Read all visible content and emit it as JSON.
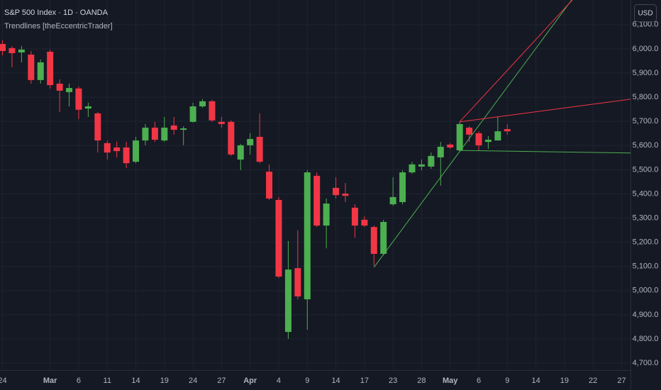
{
  "chart_data": {
    "type": "candlestick",
    "title": "S&P 500 Index · 1D · OANDA",
    "subtitle": "Trendlines [theEccentricTrader]",
    "categories": [
      "24",
      null,
      null,
      null,
      null,
      "Mar",
      null,
      null,
      "6",
      null,
      null,
      "11",
      null,
      null,
      "14",
      null,
      null,
      "19",
      null,
      null,
      "24",
      null,
      null,
      "27",
      null,
      null,
      "Apr",
      null,
      null,
      "4",
      null,
      null,
      "9",
      null,
      null,
      "14",
      null,
      null,
      "17",
      null,
      null,
      "23",
      null,
      null,
      "28",
      null,
      null,
      "May",
      null,
      null,
      "6",
      null,
      null,
      "9",
      null,
      null,
      "14",
      null,
      null,
      "19",
      null,
      null,
      "22",
      null,
      null,
      "27",
      null
    ],
    "open": [
      6020,
      6003,
      5985,
      5976,
      5871,
      5988,
      5856,
      5821,
      5836,
      5753,
      5733,
      5610,
      5592,
      5592,
      5533,
      5621,
      5674,
      5621,
      5683,
      5665,
      5698,
      5762,
      5783,
      5698,
      5698,
      5542,
      5601,
      5636,
      5492,
      5375,
      4829,
      5093,
      4964,
      5475,
      5269,
      5425,
      5401,
      5343,
      5293,
      5263,
      5152,
      5357,
      5366,
      5489,
      5513,
      5513,
      5551,
      5604,
      5580,
      5674,
      5651,
      5615,
      5621,
      5668,
      null,
      null,
      null,
      null,
      null,
      null,
      null,
      null,
      null,
      null,
      null,
      null,
      null
    ],
    "high": [
      6035,
      6011,
      6012,
      5991,
      5956,
      5997,
      5874,
      5856,
      5844,
      5777,
      5739,
      5621,
      5616,
      5616,
      5636,
      5689,
      5698,
      5718,
      5718,
      5680,
      5777,
      5792,
      5789,
      5718,
      5704,
      5607,
      5651,
      5733,
      5522,
      5387,
      5205,
      5249,
      5498,
      5489,
      5381,
      5469,
      5445,
      5357,
      5307,
      5269,
      5293,
      5469,
      5498,
      5533,
      5542,
      5571,
      5615,
      5610,
      5698,
      5680,
      5659,
      5639,
      5718,
      5689,
      null,
      null,
      null,
      null,
      null,
      null,
      null,
      null,
      null,
      null,
      null,
      null,
      null
    ],
    "low": [
      5973,
      5924,
      5944,
      5856,
      5856,
      5836,
      5739,
      5762,
      5709,
      5718,
      5571,
      5542,
      5551,
      5507,
      5527,
      5601,
      5615,
      5615,
      5645,
      5601,
      5695,
      5756,
      5698,
      5674,
      5557,
      5498,
      5563,
      5527,
      5375,
      5052,
      4800,
      4964,
      4838,
      5263,
      5175,
      5381,
      5366,
      5219,
      5263,
      5102,
      5146,
      5351,
      5357,
      5483,
      5498,
      5504,
      5434,
      5586,
      5574,
      5615,
      5580,
      5586,
      5621,
      5645,
      null,
      null,
      null,
      null,
      null,
      null,
      null,
      null,
      null,
      null,
      null,
      null,
      null
    ],
    "close": [
      5991,
      5982,
      5997,
      5871,
      5944,
      5850,
      5827,
      5838,
      5748,
      5762,
      5621,
      5571,
      5577,
      5527,
      5621,
      5674,
      5624,
      5674,
      5665,
      5671,
      5762,
      5783,
      5704,
      5689,
      5563,
      5601,
      5627,
      5533,
      5381,
      5058,
      5087,
      4976,
      5489,
      5269,
      5360,
      5395,
      5392,
      5269,
      5269,
      5152,
      5284,
      5387,
      5489,
      5522,
      5522,
      5557,
      5595,
      5592,
      5689,
      5645,
      5601,
      5624,
      5659,
      5659,
      null,
      null,
      null,
      null,
      null,
      null,
      null,
      null,
      null,
      null,
      null,
      null,
      null
    ],
    "up_color": "#4caf50",
    "down_color": "#f23645",
    "trendlines": [
      {
        "color": "#4caf50",
        "x": [
          39,
          66
        ],
        "values": [
          5096,
          6535
        ]
      },
      {
        "color": "#f23645",
        "x": [
          48,
          66
        ],
        "values": [
          5698,
          6465
        ]
      },
      {
        "color": "#f23645",
        "x": [
          48,
          66
        ],
        "values": [
          5698,
          5792
        ]
      },
      {
        "color": "#4caf50",
        "x": [
          48,
          66
        ],
        "values": [
          5580,
          5569
        ]
      }
    ],
    "ylim": [
      4671,
      6202
    ],
    "yticks": [
      {
        "value": 4700,
        "label": "4,700.0"
      },
      {
        "value": 4800,
        "label": "4,800.0"
      },
      {
        "value": 4900,
        "label": "4,900.0"
      },
      {
        "value": 5000,
        "label": "5,000.0"
      },
      {
        "value": 5100,
        "label": "5,100.0"
      },
      {
        "value": 5200,
        "label": "5,200.0"
      },
      {
        "value": 5300,
        "label": "5,300.0"
      },
      {
        "value": 5400,
        "label": "5,400.0"
      },
      {
        "value": 5500,
        "label": "5,500.0"
      },
      {
        "value": 5600,
        "label": "5,600.0"
      },
      {
        "value": 5700,
        "label": "5,700.0"
      },
      {
        "value": 5800,
        "label": "5,800.0"
      },
      {
        "value": 5900,
        "label": "5,900.0"
      },
      {
        "value": 6000,
        "label": "6,000.0"
      },
      {
        "value": 6100,
        "label": "6,100.0"
      }
    ],
    "grid": true
  },
  "ui": {
    "currency_button": "USD"
  }
}
